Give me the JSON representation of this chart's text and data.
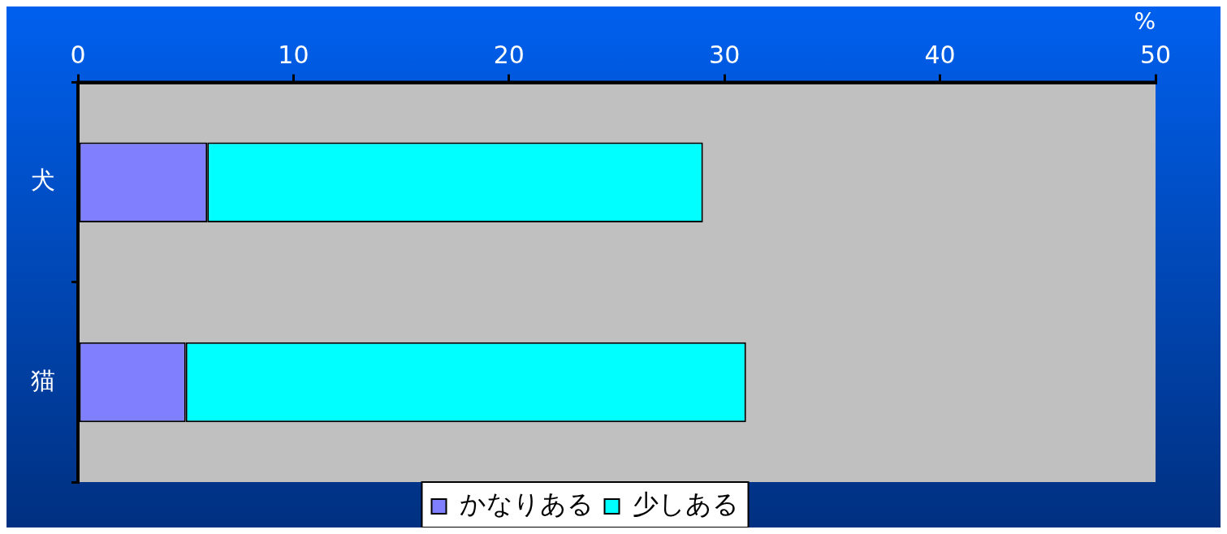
{
  "chart_data": {
    "type": "bar",
    "orientation": "horizontal",
    "stacked": true,
    "categories": [
      "犬",
      "猫"
    ],
    "series": [
      {
        "name": "かなりある",
        "color": "#8080ff",
        "values": [
          6,
          5
        ]
      },
      {
        "name": "少しある",
        "color": "#00ffff",
        "values": [
          23,
          26
        ]
      }
    ],
    "xlabel": "%",
    "xlim": [
      0,
      50
    ],
    "xticks": [
      0,
      10,
      20,
      30,
      40,
      50
    ],
    "grid": false,
    "legend": "bottom"
  }
}
